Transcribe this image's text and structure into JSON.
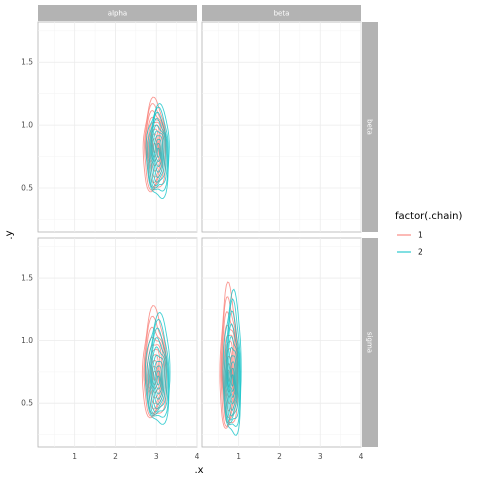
{
  "chart_data": {
    "type": "line",
    "subtype": "faceted-2d-density-contours",
    "xlabel": ".x",
    "ylabel": ".y",
    "grid": true,
    "legend_position": "right",
    "legend": {
      "title": "factor(.chain)",
      "entries": [
        {
          "label": "1",
          "color": "#F8766D"
        },
        {
          "label": "2",
          "color": "#00BFC4"
        }
      ]
    },
    "x_ticks": [
      "1",
      "2",
      "3",
      "4"
    ],
    "y_ticks": [
      "0.5",
      "1.0",
      "1.5"
    ],
    "xlim": [
      0.1,
      4.0
    ],
    "ylim": [
      0.15,
      1.82
    ],
    "col_strips": [
      "alpha",
      "beta"
    ],
    "row_strips": [
      "beta",
      "sigma"
    ],
    "panels": [
      {
        "col": "alpha",
        "row": "beta",
        "empty": false,
        "center": [
          3.0,
          0.8
        ],
        "spread": [
          0.28,
          0.25
        ],
        "skew": 0.0
      },
      {
        "col": "beta",
        "row": "beta",
        "empty": true
      },
      {
        "col": "alpha",
        "row": "sigma",
        "empty": false,
        "center": [
          3.0,
          0.7
        ],
        "spread": [
          0.3,
          0.24
        ],
        "skew": 0.45
      },
      {
        "col": "beta",
        "row": "sigma",
        "empty": false,
        "center": [
          0.8,
          0.7
        ],
        "spread": [
          0.22,
          0.3
        ],
        "skew": 0.55
      }
    ]
  }
}
